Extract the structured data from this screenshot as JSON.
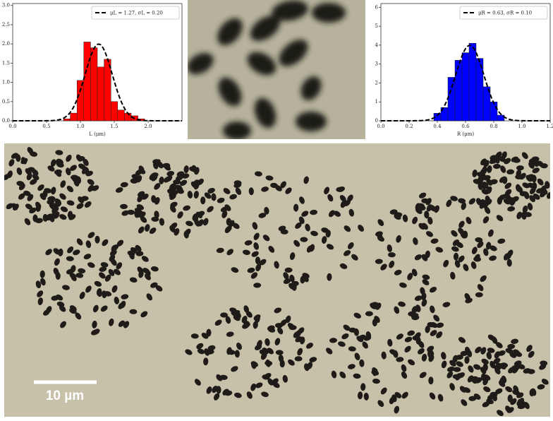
{
  "chart_data": [
    {
      "type": "histogram",
      "xlabel": "L (μm)",
      "color": "#ff0000",
      "bins": [
        0.75,
        0.85,
        0.95,
        1.05,
        1.15,
        1.25,
        1.35,
        1.45,
        1.55,
        1.65,
        1.75,
        1.85,
        1.95
      ],
      "values": [
        0.05,
        0.2,
        1.05,
        2.05,
        1.9,
        1.4,
        1.6,
        0.5,
        0.28,
        0.2,
        0.13,
        0.05
      ],
      "xlim": [
        0,
        2.5
      ],
      "ylim": [
        0,
        3.05
      ],
      "xticks": [
        {
          "value": 0,
          "label": "0.0"
        },
        {
          "value": 0.5,
          "label": "0.5"
        },
        {
          "value": 1,
          "label": "1.0"
        },
        {
          "value": 1.5,
          "label": "1.5"
        },
        {
          "value": 2,
          "label": "2.0"
        }
      ],
      "yticks": [
        {
          "value": 0,
          "label": "0.0"
        },
        {
          "value": 0.5,
          "label": "0.5"
        },
        {
          "value": 1,
          "label": "1.0"
        },
        {
          "value": 1.5,
          "label": "1.5"
        },
        {
          "value": 2,
          "label": "2.0"
        },
        {
          "value": 2.5,
          "label": "2.5"
        },
        {
          "value": 3,
          "label": "3.0"
        }
      ],
      "fit": {
        "label": "μL = 1.27, σL = 0.20",
        "mu": 1.27,
        "sigma": 0.2
      },
      "legend": "upper right"
    },
    {
      "type": "histogram",
      "xlabel": "R (μm)",
      "color": "#0000ff",
      "bins": [
        0.375,
        0.425,
        0.475,
        0.525,
        0.575,
        0.625,
        0.675,
        0.725,
        0.775,
        0.825,
        0.875
      ],
      "values": [
        0.4,
        0.7,
        2.3,
        3.2,
        3.6,
        4.1,
        3.3,
        1.8,
        1.0,
        0.3
      ],
      "xlim": [
        0,
        1.2
      ],
      "ylim": [
        0,
        6.2
      ],
      "xticks": [
        {
          "value": 0,
          "label": "0.0"
        },
        {
          "value": 0.2,
          "label": "0.2"
        },
        {
          "value": 0.4,
          "label": "0.4"
        },
        {
          "value": 0.6,
          "label": "0.6"
        },
        {
          "value": 0.8,
          "label": "0.8"
        },
        {
          "value": 1,
          "label": "1.0"
        },
        {
          "value": 1.2,
          "label": "1.2"
        }
      ],
      "yticks": [
        0,
        1,
        2,
        3,
        4,
        5,
        6
      ],
      "fit": {
        "label": "μR = 0.63, σR = 0.10",
        "mu": 0.63,
        "sigma": 0.1
      },
      "legend": "upper right"
    }
  ],
  "image": {
    "scale_bar": "10 µm"
  }
}
